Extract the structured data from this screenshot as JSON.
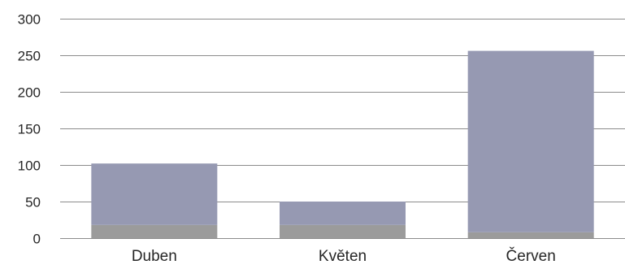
{
  "chart_data": {
    "type": "bar",
    "stacked": true,
    "categories": [
      "Duben",
      "Květen",
      "Červen"
    ],
    "series": [
      {
        "values": [
          18,
          18,
          8
        ],
        "color": "#9b9b9b"
      },
      {
        "values": [
          84,
          32,
          248
        ],
        "color": "#9699b2"
      }
    ],
    "ylim": [
      0,
      300
    ],
    "yticks": [
      0,
      50,
      100,
      150,
      200,
      250,
      300
    ],
    "grid": true,
    "title": "",
    "xlabel": "",
    "ylabel": ""
  }
}
